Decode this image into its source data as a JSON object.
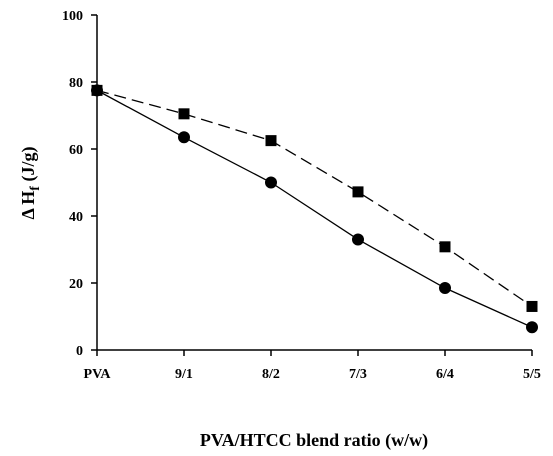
{
  "chart_data": {
    "type": "line",
    "categories": [
      "PVA",
      "9/1",
      "8/2",
      "7/3",
      "6/4",
      "5/5"
    ],
    "series": [
      {
        "values": [
          77.5,
          70.5,
          62.5,
          47.2,
          30.8,
          13.0
        ],
        "marker": "square",
        "line_style": "dashed",
        "color": "#000000"
      },
      {
        "values": [
          77.5,
          63.5,
          50.0,
          33.0,
          18.5,
          6.8
        ],
        "marker": "circle",
        "line_style": "solid",
        "color": "#000000"
      }
    ],
    "ylim": [
      0,
      100
    ],
    "yticks": [
      0,
      20,
      40,
      60,
      80,
      100
    ],
    "xlabel": "PVA/HTCC blend ratio (w/w)",
    "ylabel": {
      "prefix": "Δ H",
      "subscript": "f",
      "suffix": " (J/g)"
    },
    "grid": false,
    "legend": "none"
  }
}
